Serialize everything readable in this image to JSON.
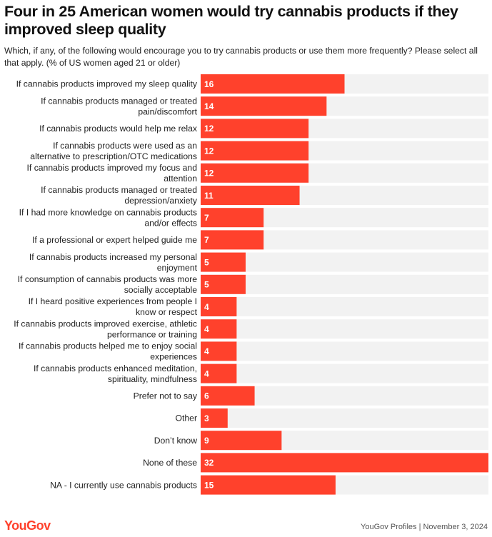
{
  "title": "Four in 25 American women would try cannabis products if they improved sleep quality",
  "subtitle": "Which, if any, of the following would encourage you to try cannabis products or use them more frequently? Please select all that apply. (% of US women aged 21 or older)",
  "logo": "YouGov",
  "footer": "YouGov Profiles | November 3, 2024",
  "colors": {
    "bar": "#ff412c",
    "track": "#f2f2f2"
  },
  "chart_data": {
    "type": "bar",
    "orientation": "horizontal",
    "xlim": [
      0,
      32
    ],
    "categories": [
      [
        "If cannabis products improved my sleep quality"
      ],
      [
        "If cannabis products managed or treated",
        "pain/discomfort"
      ],
      [
        "If cannabis products would help me relax"
      ],
      [
        "If cannabis products were used as an",
        "alternative to prescription/OTC medications"
      ],
      [
        "If cannabis products improved my focus and",
        "attention"
      ],
      [
        "If cannabis products managed or treated",
        "depression/anxiety"
      ],
      [
        "If I had more knowledge on cannabis products",
        "and/or effects"
      ],
      [
        "If a professional or expert helped guide me"
      ],
      [
        "If cannabis products increased my personal",
        "enjoyment"
      ],
      [
        "If consumption of cannabis products was more",
        "socially acceptable"
      ],
      [
        "If I heard positive experiences from people I",
        "know or respect"
      ],
      [
        "If cannabis products improved exercise, athletic",
        "performance or training"
      ],
      [
        "If cannabis products helped me to enjoy social",
        "experiences"
      ],
      [
        "If cannabis products enhanced meditation,",
        "spirituality, mindfulness"
      ],
      [
        "Prefer not to say"
      ],
      [
        "Other"
      ],
      [
        "Don’t know"
      ],
      [
        "None of these"
      ],
      [
        "NA - I currently use cannabis products"
      ]
    ],
    "values": [
      16,
      14,
      12,
      12,
      12,
      11,
      7,
      7,
      5,
      5,
      4,
      4,
      4,
      4,
      6,
      3,
      9,
      32,
      15
    ]
  }
}
